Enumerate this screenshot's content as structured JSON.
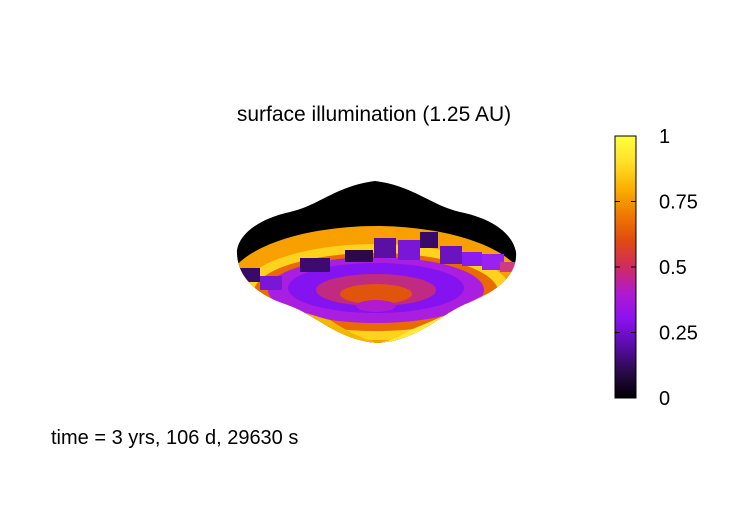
{
  "chart_data": {
    "type": "heatmap",
    "title": "surface illumination (1.25 AU)",
    "colorbar": {
      "min": 0,
      "max": 1,
      "ticks": [
        0,
        0.25,
        0.5,
        0.75,
        1
      ],
      "tick_labels": [
        "0",
        "0.25",
        "0.5",
        "0.75",
        "1"
      ],
      "colors": [
        "#000000",
        "#2a0a4a",
        "#5a0ca8",
        "#8a12f0",
        "#b01ad0",
        "#d02a60",
        "#e04a10",
        "#f07a00",
        "#fbb000",
        "#ffe028",
        "#ffff40"
      ]
    },
    "annotation": "time = 3 yrs, 106 d, 29630 s",
    "surface": {
      "shape": "flattened-ellipsoid",
      "dark_fraction": "upper-half",
      "lit_region": "lower-front band",
      "peak_illumination": 1
    }
  }
}
